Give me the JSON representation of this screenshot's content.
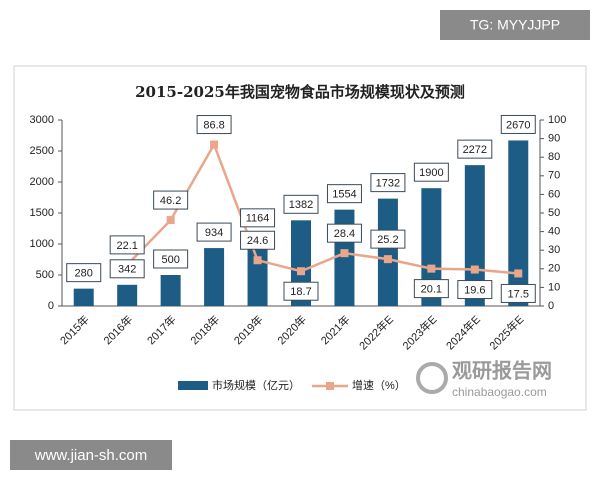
{
  "chart_data": {
    "type": "bar",
    "title": "2015-2025年我国宠物食品市场规模现状及预测",
    "categories": [
      "2015年",
      "2016年",
      "2017年",
      "2018年",
      "2019年",
      "2020年",
      "2021年",
      "2022年E",
      "2023年E",
      "2024年E",
      "2025年E"
    ],
    "series": [
      {
        "name": "市场规模（亿元）",
        "color": "#1d5c85",
        "values": [
          280,
          342,
          500,
          934,
          1164,
          1382,
          1554,
          1732,
          1900,
          2272,
          2670
        ]
      },
      {
        "name": "增速（%）",
        "color": "#e9a68a",
        "type": "line",
        "axis": "y2",
        "values": [
          null,
          22.1,
          46.2,
          86.8,
          24.6,
          18.7,
          28.4,
          25.2,
          20.1,
          19.6,
          17.5
        ]
      }
    ],
    "ylim": [
      0,
      3000
    ],
    "yticks": [
      0,
      500,
      1000,
      1500,
      2000,
      2500,
      3000
    ],
    "y2lim": [
      0,
      100
    ],
    "y2ticks": [
      0,
      10,
      20,
      30,
      40,
      50,
      60,
      70,
      80,
      90,
      100
    ],
    "legend": "bottom"
  },
  "watermarks": {
    "top": "TG: MYYJJPP",
    "bottom": "www.jian-sh.com",
    "brand": "观研报告网",
    "brand_url": "chinabaogao.com"
  }
}
